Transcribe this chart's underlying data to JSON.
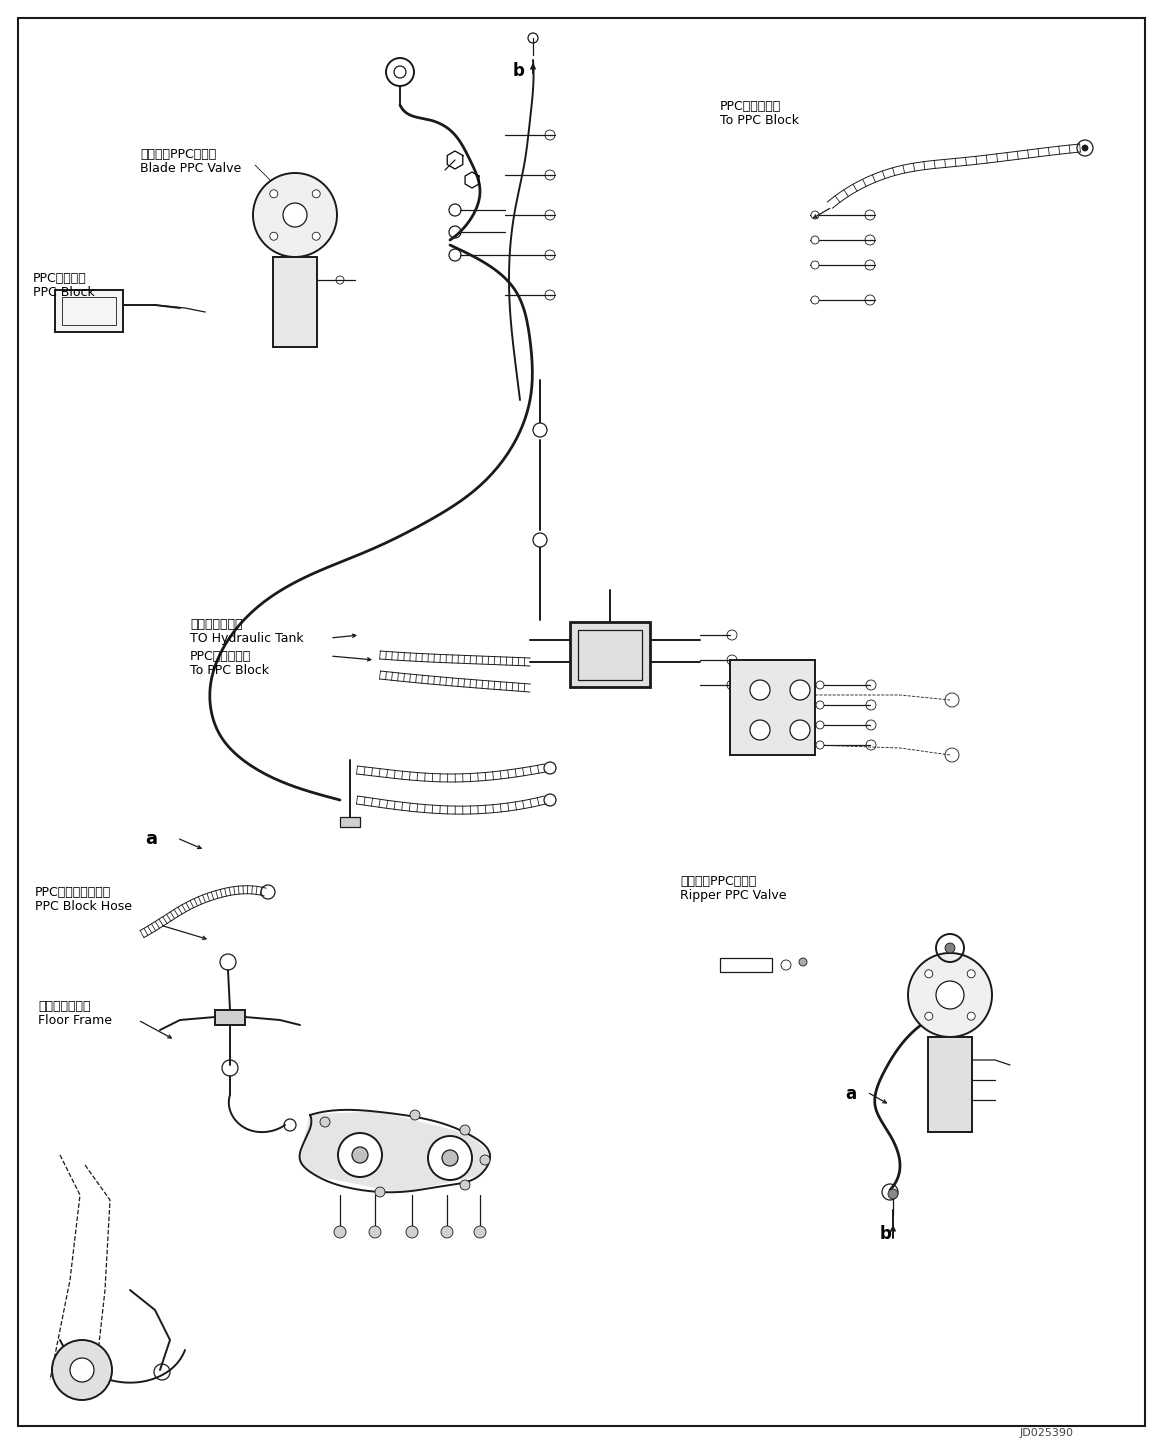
{
  "background_color": "#ffffff",
  "line_color": "#1a1a1a",
  "fig_width": 11.63,
  "fig_height": 14.44,
  "dpi": 100,
  "watermark": "JD025390",
  "labels": {
    "blade_ppc_valve_jp": "ブレードPPCバルブ",
    "blade_ppc_valve_en": "Blade PPC Valve",
    "ppc_block_jp": "PPCブロック",
    "ppc_block_en": "PPC Block",
    "ppc_block_to_jp": "PPCブロックへ",
    "ppc_block_to_en": "To PPC Block",
    "hydraulic_tank_jp": "作動油タンクへ",
    "hydraulic_tank_en": "TO Hydraulic Tank",
    "ppc_block_hose_jp": "PPCブロックホース",
    "ppc_block_hose_en": "PPC Block Hose",
    "floor_frame_jp": "フロアフレーム",
    "floor_frame_en": "Floor Frame",
    "ripper_ppc_valve_jp": "リッパ　PPCバルブ",
    "ripper_ppc_valve_en": "Ripper PPC Valve",
    "ppc_block_to2_jp": "PPCブロックへ",
    "ppc_block_to2_en": "To PPC Block"
  }
}
